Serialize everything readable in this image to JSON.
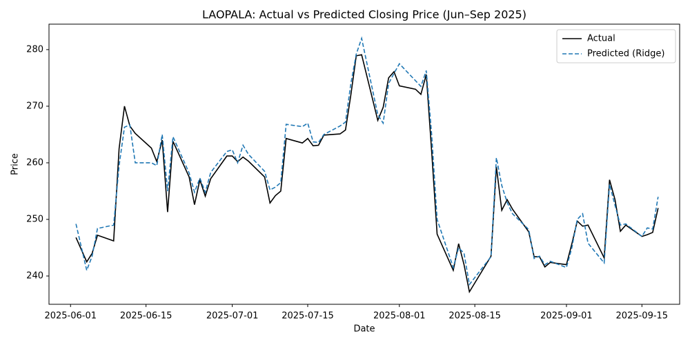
{
  "chart_data": {
    "type": "line",
    "title": "LAOPALA: Actual vs Predicted Closing Price (Jun–Sep 2025)",
    "xlabel": "Date",
    "ylabel": "Price",
    "x": [
      "2025-06-02",
      "2025-06-04",
      "2025-06-05",
      "2025-06-06",
      "2025-06-09",
      "2025-06-10",
      "2025-06-11",
      "2025-06-12",
      "2025-06-13",
      "2025-06-16",
      "2025-06-17",
      "2025-06-18",
      "2025-06-19",
      "2025-06-20",
      "2025-06-23",
      "2025-06-24",
      "2025-06-25",
      "2025-06-26",
      "2025-06-27",
      "2025-06-30",
      "2025-07-01",
      "2025-07-02",
      "2025-07-03",
      "2025-07-04",
      "2025-07-07",
      "2025-07-08",
      "2025-07-09",
      "2025-07-10",
      "2025-07-11",
      "2025-07-14",
      "2025-07-15",
      "2025-07-16",
      "2025-07-17",
      "2025-07-18",
      "2025-07-21",
      "2025-07-22",
      "2025-07-23",
      "2025-07-24",
      "2025-07-25",
      "2025-07-28",
      "2025-07-29",
      "2025-07-30",
      "2025-07-31",
      "2025-08-01",
      "2025-08-04",
      "2025-08-05",
      "2025-08-06",
      "2025-08-07",
      "2025-08-08",
      "2025-08-11",
      "2025-08-12",
      "2025-08-13",
      "2025-08-14",
      "2025-08-18",
      "2025-08-19",
      "2025-08-20",
      "2025-08-21",
      "2025-08-22",
      "2025-08-25",
      "2025-08-26",
      "2025-08-27",
      "2025-08-28",
      "2025-08-29",
      "2025-09-01",
      "2025-09-02",
      "2025-09-03",
      "2025-09-04",
      "2025-09-05",
      "2025-09-08",
      "2025-09-09",
      "2025-09-10",
      "2025-09-11",
      "2025-09-12",
      "2025-09-15",
      "2025-09-16",
      "2025-09-17",
      "2025-09-18"
    ],
    "series": [
      {
        "name": "Actual",
        "color": "#000000",
        "dash": "solid",
        "values": [
          246.8,
          242.5,
          244,
          247.2,
          246.2,
          262.5,
          270,
          266.5,
          265.2,
          262.6,
          260.2,
          264,
          251.3,
          263.8,
          257.5,
          252.6,
          257,
          254.1,
          257.2,
          261.2,
          261.2,
          260.2,
          261,
          260.3,
          257.5,
          252.9,
          254.2,
          255,
          264.3,
          263.5,
          264.3,
          263,
          263.1,
          264.9,
          265.1,
          265.8,
          272,
          278.9,
          279.1,
          267.5,
          269.8,
          275,
          276.1,
          273.6,
          273,
          272.1,
          275.6,
          262,
          247.4,
          241,
          245.7,
          242,
          237.2,
          243.5,
          259.3,
          251.6,
          253.5,
          251.8,
          247.8,
          243.4,
          243.4,
          241.6,
          242.4,
          242,
          245.7,
          249.7,
          248.8,
          249,
          243.2,
          257,
          253.5,
          247.9,
          249,
          247,
          247.3,
          247.7,
          252
        ]
      },
      {
        "name": "Predicted (Ridge)",
        "color": "#1f77b4",
        "dash": "dashed",
        "values": [
          249.2,
          241,
          243.5,
          248.4,
          249,
          259.5,
          266.3,
          266.7,
          260,
          260,
          259.5,
          265,
          255,
          264.6,
          258.2,
          254.8,
          257.3,
          254.8,
          258.3,
          262,
          262.3,
          260,
          263.1,
          261.5,
          258.5,
          255.2,
          255.7,
          256.5,
          266.8,
          266.4,
          267,
          263.7,
          263.6,
          265,
          266.5,
          267.2,
          274,
          279.2,
          282,
          268.5,
          267,
          274,
          275.8,
          277.5,
          274.5,
          273.5,
          276.3,
          265,
          250,
          241.5,
          245,
          244,
          238.5,
          243.4,
          260.9,
          256,
          253,
          251,
          248.2,
          243.1,
          243.5,
          242,
          242.6,
          241.5,
          245,
          250,
          251,
          245.8,
          242.3,
          256.2,
          252.5,
          249,
          249.2,
          247,
          248.5,
          248.3,
          254
        ]
      }
    ],
    "xlim": [
      "2025-05-28",
      "2025-09-22"
    ],
    "xticks": [
      "2025-06-01",
      "2025-06-15",
      "2025-07-01",
      "2025-07-15",
      "2025-08-01",
      "2025-08-15",
      "2025-09-01",
      "2025-09-15"
    ],
    "ylim": [
      235,
      284.5
    ],
    "yticks": [
      240,
      250,
      260,
      270,
      280
    ],
    "grid": false,
    "legend": "upper right"
  }
}
